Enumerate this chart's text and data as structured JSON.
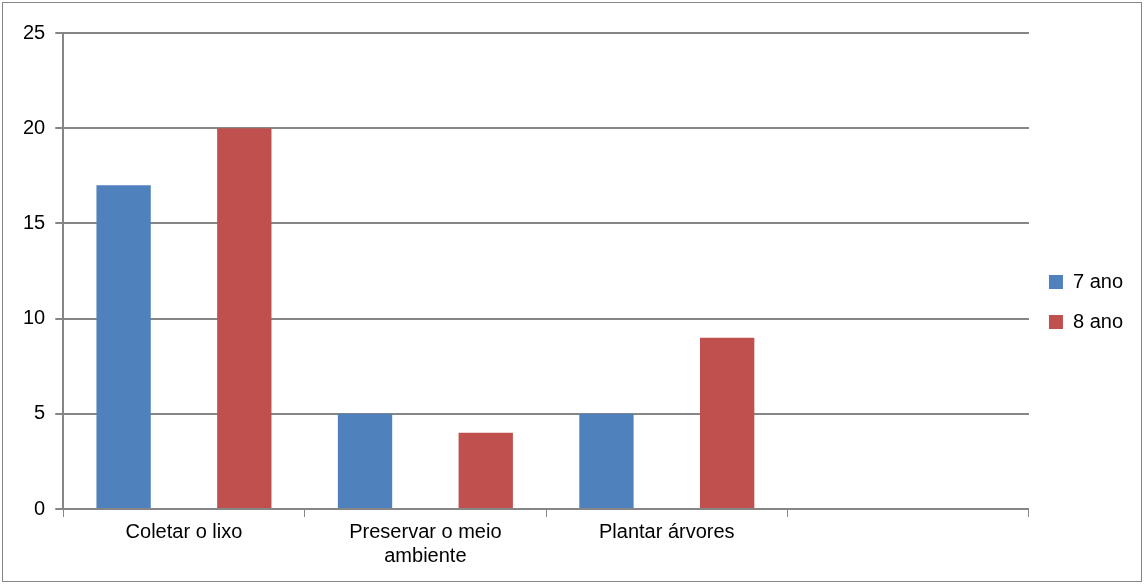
{
  "chart_data": {
    "type": "bar",
    "categories": [
      "Coletar o lixo",
      "Preservar o meio ambiente",
      "Plantar árvores",
      null
    ],
    "series": [
      {
        "name": "7 ano",
        "color": "#4f81bd",
        "values": [
          17,
          5,
          5,
          null
        ]
      },
      {
        "name": "8 ano",
        "color": "#c0504d",
        "values": [
          20,
          4,
          9,
          null
        ]
      }
    ],
    "ylim": [
      0,
      25
    ],
    "yticks": [
      0,
      5,
      10,
      15,
      20,
      25
    ],
    "grid": "y",
    "legend": "right"
  }
}
